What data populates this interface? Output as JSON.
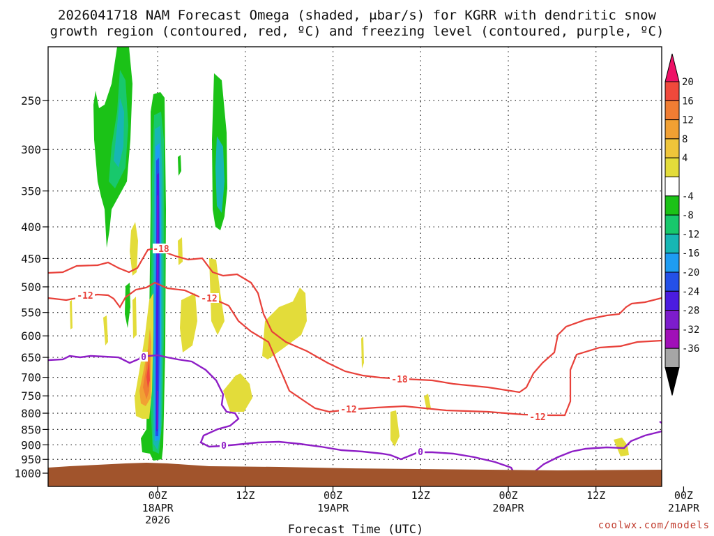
{
  "chart_data": {
    "type": "heatmap",
    "title_line1": "2026041718 NAM Forecast Omega (shaded, μbar/s) for KGRR with dendritic snow",
    "title_line2": "growth region (contoured, red, ºC) and freezing level (contoured, purple, ºC)",
    "xlabel": "Forecast Time (UTC)",
    "ylabel": "",
    "credit": "coolwx.com/models",
    "x_range_hours": [
      -9,
      75
    ],
    "y_range_hpa": [
      1040,
      200
    ],
    "y_ticks": [
      {
        "value": 250,
        "label": "250"
      },
      {
        "value": 300,
        "label": "300"
      },
      {
        "value": 350,
        "label": "350"
      },
      {
        "value": 400,
        "label": "400"
      },
      {
        "value": 450,
        "label": "450"
      },
      {
        "value": 500,
        "label": "500"
      },
      {
        "value": 550,
        "label": "550"
      },
      {
        "value": 600,
        "label": "600"
      },
      {
        "value": 650,
        "label": "650"
      },
      {
        "value": 700,
        "label": "700"
      },
      {
        "value": 750,
        "label": "750"
      },
      {
        "value": 800,
        "label": "800"
      },
      {
        "value": 850,
        "label": "850"
      },
      {
        "value": 900,
        "label": "900"
      },
      {
        "value": 950,
        "label": "950"
      },
      {
        "value": 1000,
        "label": "1000"
      }
    ],
    "x_ticks": [
      {
        "hour": 6,
        "label": "00Z",
        "date": "18APR",
        "year": "2026"
      },
      {
        "hour": 18,
        "label": "12Z",
        "date": "",
        "year": ""
      },
      {
        "hour": 30,
        "label": "00Z",
        "date": "19APR",
        "year": ""
      },
      {
        "hour": 42,
        "label": "12Z",
        "date": "",
        "year": ""
      },
      {
        "hour": 54,
        "label": "00Z",
        "date": "20APR",
        "year": ""
      },
      {
        "hour": 66,
        "label": "12Z",
        "date": "",
        "year": ""
      },
      {
        "hour": 78,
        "label": "00Z",
        "date": "21APR",
        "year": ""
      }
    ],
    "colorbar": {
      "labels": [
        "20",
        "16",
        "12",
        "8",
        "4",
        "-4",
        "-8",
        "-12",
        "-16",
        "-20",
        "-24",
        "-28",
        "-32",
        "-36"
      ],
      "colors": [
        "#ee1166",
        "#f0493b",
        "#f07d33",
        "#f1a033",
        "#efc53a",
        "#e3dc3a",
        "#ffffff",
        "#1bc217",
        "#18c86c",
        "#17b6b4",
        "#1e9cf2",
        "#2450e8",
        "#4b1ce0",
        "#7d1ccc",
        "#a010b8",
        "#a6a6a6",
        "#000000"
      ]
    },
    "contour_labels": [
      {
        "text": "-18",
        "color": "#e8413a"
      },
      {
        "text": "-12",
        "color": "#e8413a"
      },
      {
        "text": "-12",
        "color": "#e8413a"
      },
      {
        "text": "-18",
        "color": "#e8413a"
      },
      {
        "text": "-12",
        "color": "#e8413a"
      },
      {
        "text": "-12",
        "color": "#e8413a"
      },
      {
        "text": "0",
        "color": "#8e1ec6"
      },
      {
        "text": "0",
        "color": "#8e1ec6"
      },
      {
        "text": "0",
        "color": "#8e1ec6"
      }
    ],
    "colors": {
      "snow_contour": "#e8413a",
      "freezing_contour": "#8e1ec6",
      "terrain": "#a1542c",
      "grid": "#222222"
    }
  }
}
